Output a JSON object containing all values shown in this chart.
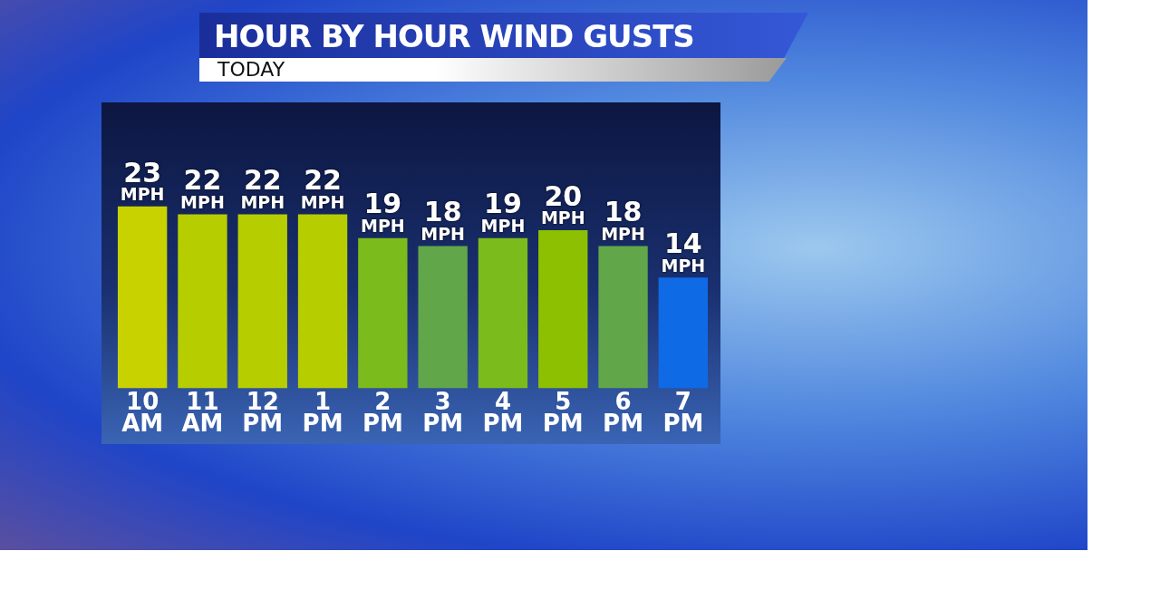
{
  "chart_data": {
    "type": "bar",
    "title": "HOUR BY HOUR WIND GUSTS",
    "subtitle": "TODAY",
    "categories": [
      "10 AM",
      "11 AM",
      "12 PM",
      "1 PM",
      "2 PM",
      "3 PM",
      "4 PM",
      "5 PM",
      "6 PM",
      "7 PM"
    ],
    "values": [
      23,
      22,
      22,
      22,
      19,
      18,
      19,
      20,
      18,
      14
    ],
    "colors": [
      "#c8d200",
      "#b6cd00",
      "#b6cd00",
      "#b6cd00",
      "#7cbb1c",
      "#62a64a",
      "#7cbb1c",
      "#8cc000",
      "#62a64a",
      "#0f6ae6"
    ],
    "value_labels": [
      "23 MPH",
      "22 MPH",
      "22 MPH",
      "22 MPH",
      "19 MPH",
      "18 MPH",
      "19 MPH",
      "20 MPH",
      "18 MPH",
      "14 MPH"
    ],
    "grid": false,
    "legend": false
  }
}
